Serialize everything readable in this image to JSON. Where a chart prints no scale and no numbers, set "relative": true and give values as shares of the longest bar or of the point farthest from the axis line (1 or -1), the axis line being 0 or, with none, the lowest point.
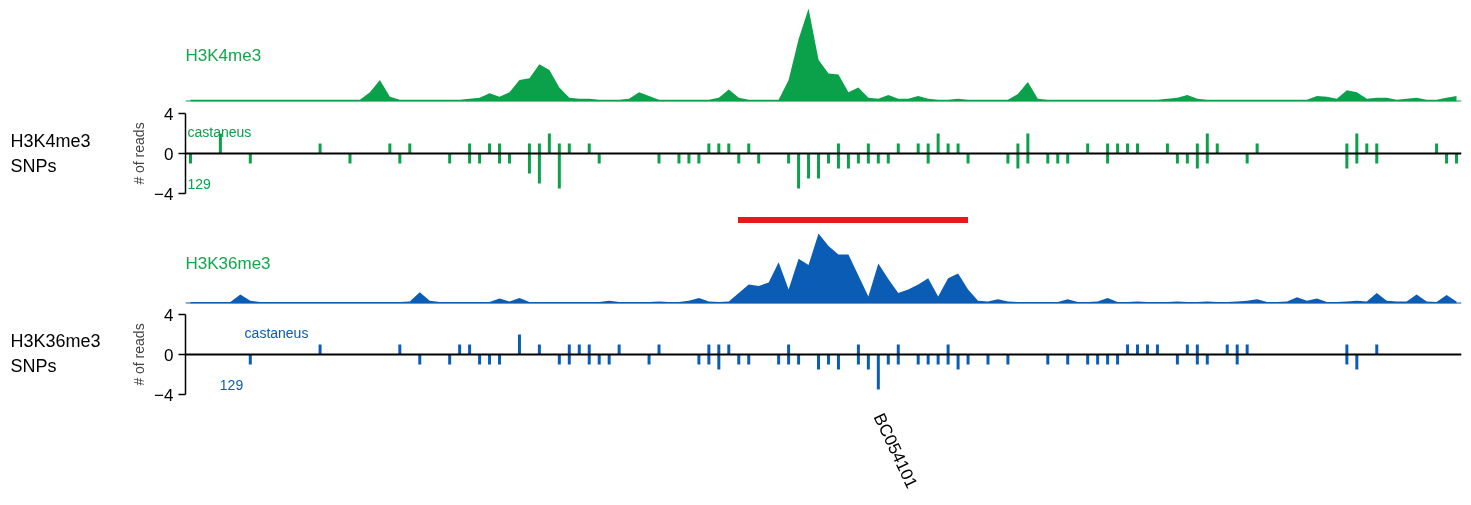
{
  "chart_data": [
    {
      "type": "area",
      "relative": true,
      "title": "H3K4me3",
      "categories": [
        null,
        null,
        null,
        null,
        null,
        null,
        null,
        null,
        null,
        null,
        null,
        null,
        null,
        null,
        null,
        null,
        null,
        null,
        null,
        null,
        null,
        null,
        null,
        null,
        null,
        null,
        null,
        null,
        null,
        null,
        null,
        null,
        null,
        null,
        null,
        null,
        null,
        null,
        null,
        null,
        null,
        null,
        null,
        null,
        null,
        null,
        null,
        null,
        null,
        null,
        null,
        null,
        null,
        null,
        null,
        null,
        null,
        null,
        null,
        null,
        null,
        null,
        null,
        null,
        null,
        null,
        null,
        null,
        null,
        null,
        null,
        null,
        null,
        null,
        null,
        null,
        null,
        null,
        null,
        null,
        null,
        null,
        null,
        null,
        null,
        null,
        null,
        null,
        null,
        null,
        null,
        null,
        null,
        null,
        null,
        null,
        null,
        null,
        null,
        null,
        null,
        null,
        null,
        null,
        null,
        null,
        null,
        null,
        null,
        null,
        null,
        null,
        null,
        null,
        null,
        null,
        null,
        null,
        null,
        null,
        null,
        null,
        null,
        null,
        null,
        null,
        null,
        null
      ],
      "series": [
        {
          "color": "#0aa14a",
          "values": [
            0.02,
            0.02,
            0.02,
            0.02,
            0.02,
            0.02,
            0.02,
            0.02,
            0.02,
            0.02,
            0.02,
            0.02,
            0.02,
            0.02,
            0.02,
            0.02,
            0.02,
            0.02,
            0.1,
            0.23,
            0.05,
            0.02,
            0.02,
            0.02,
            0.02,
            0.02,
            0.02,
            0.02,
            0.03,
            0.04,
            0.09,
            0.05,
            0.1,
            0.23,
            0.25,
            0.4,
            0.34,
            0.15,
            0.04,
            0.03,
            0.03,
            0.02,
            0.02,
            0.02,
            0.03,
            0.1,
            0.06,
            0.02,
            0.02,
            0.02,
            0.02,
            0.02,
            0.02,
            0.04,
            0.13,
            0.04,
            0.02,
            0.02,
            0.02,
            0.02,
            0.23,
            0.67,
            1.0,
            0.45,
            0.3,
            0.29,
            0.1,
            0.15,
            0.04,
            0.03,
            0.07,
            0.03,
            0.03,
            0.06,
            0.03,
            0.02,
            0.02,
            0.03,
            0.02,
            0.02,
            0.02,
            0.02,
            0.02,
            0.08,
            0.21,
            0.03,
            0.02,
            0.02,
            0.02,
            0.02,
            0.02,
            0.02,
            0.02,
            0.02,
            0.02,
            0.02,
            0.02,
            0.02,
            0.03,
            0.04,
            0.07,
            0.03,
            0.02,
            0.02,
            0.02,
            0.02,
            0.02,
            0.02,
            0.02,
            0.02,
            0.02,
            0.02,
            0.02,
            0.06,
            0.05,
            0.03,
            0.12,
            0.1,
            0.03,
            0.04,
            0.04,
            0.02,
            0.03,
            0.04,
            0.02,
            0.02,
            0.04,
            0.06
          ]
        }
      ]
    },
    {
      "type": "bar",
      "ylabel": "# of reads",
      "annotations": [
        "H3K4me3 SNPs"
      ],
      "ylim": [
        -4,
        4
      ],
      "yticks": [
        -4,
        0,
        4
      ],
      "tick_labels": "y",
      "categories": [
        null,
        null,
        null,
        null,
        null,
        null,
        null,
        null,
        null,
        null,
        null,
        null,
        null,
        null,
        null,
        null,
        null,
        null,
        null,
        null,
        null,
        null,
        null,
        null,
        null,
        null,
        null,
        null,
        null,
        null,
        null,
        null,
        null,
        null,
        null,
        null,
        null,
        null,
        null,
        null,
        null,
        null,
        null,
        null,
        null,
        null,
        null,
        null,
        null,
        null,
        null,
        null,
        null,
        null,
        null,
        null,
        null,
        null,
        null,
        null,
        null,
        null,
        null,
        null,
        null,
        null,
        null,
        null,
        null,
        null,
        null,
        null,
        null,
        null,
        null,
        null,
        null,
        null,
        null,
        null,
        null,
        null,
        null,
        null,
        null,
        null,
        null,
        null,
        null,
        null,
        null,
        null,
        null,
        null,
        null,
        null,
        null,
        null,
        null,
        null,
        null,
        null,
        null,
        null,
        null,
        null,
        null,
        null,
        null,
        null,
        null,
        null,
        null,
        null,
        null,
        null,
        null,
        null,
        null,
        null,
        null,
        null,
        null,
        null,
        null,
        null,
        null,
        null
      ],
      "series": [
        {
          "name": "castaneus",
          "color": "#0aa14a",
          "values": [
            null,
            null,
            null,
            2,
            null,
            null,
            null,
            null,
            null,
            null,
            null,
            null,
            null,
            1,
            null,
            null,
            null,
            null,
            null,
            null,
            1,
            null,
            1,
            null,
            null,
            null,
            null,
            null,
            1,
            null,
            1,
            1,
            null,
            null,
            1,
            1,
            2,
            1,
            1,
            null,
            1,
            null,
            null,
            null,
            null,
            null,
            null,
            null,
            null,
            null,
            null,
            null,
            1,
            1,
            1,
            null,
            1,
            null,
            null,
            null,
            null,
            null,
            null,
            null,
            null,
            1,
            null,
            null,
            1,
            null,
            null,
            1,
            null,
            1,
            1,
            2,
            1,
            1,
            null,
            null,
            null,
            null,
            null,
            1,
            2,
            null,
            null,
            null,
            null,
            null,
            1,
            null,
            1,
            1,
            1,
            1,
            null,
            null,
            1,
            null,
            null,
            1,
            2,
            1,
            null,
            null,
            null,
            1,
            null,
            null,
            null,
            null,
            null,
            null,
            null,
            null,
            1,
            2,
            1,
            1,
            null,
            null,
            null,
            null,
            null,
            1,
            null,
            null
          ]
        },
        {
          "name": "129",
          "color": "#0aa14a",
          "values": [
            -1,
            null,
            null,
            null,
            null,
            null,
            -1,
            null,
            null,
            null,
            null,
            null,
            null,
            null,
            null,
            null,
            -1,
            null,
            null,
            null,
            null,
            -1,
            null,
            null,
            null,
            null,
            -1,
            null,
            -1,
            -1,
            null,
            -1,
            -1,
            null,
            -2,
            -3,
            null,
            -3.5,
            null,
            null,
            null,
            -1,
            null,
            null,
            null,
            null,
            null,
            -1,
            null,
            -1,
            -1,
            -1,
            null,
            null,
            null,
            -1,
            null,
            -1,
            null,
            null,
            -1,
            -3.5,
            -2.5,
            -2.5,
            -1,
            -1.5,
            -1.5,
            -1,
            -1,
            -1,
            -1,
            null,
            null,
            null,
            -1,
            null,
            null,
            null,
            -1,
            null,
            null,
            null,
            -1,
            -1.5,
            -1,
            null,
            -1,
            -1,
            -1,
            null,
            null,
            null,
            -1,
            null,
            null,
            null,
            null,
            null,
            null,
            -1,
            -1,
            -1.5,
            -1,
            null,
            null,
            null,
            -1,
            null,
            null,
            null,
            null,
            null,
            null,
            null,
            null,
            null,
            -1.5,
            -1,
            null,
            -1,
            null,
            null,
            null,
            null,
            null,
            null,
            -1,
            -1
          ]
        }
      ]
    },
    {
      "type": "area",
      "relative": true,
      "title": "H3K36me3",
      "categories": [
        null,
        null,
        null,
        null,
        null,
        null,
        null,
        null,
        null,
        null,
        null,
        null,
        null,
        null,
        null,
        null,
        null,
        null,
        null,
        null,
        null,
        null,
        null,
        null,
        null,
        null,
        null,
        null,
        null,
        null,
        null,
        null,
        null,
        null,
        null,
        null,
        null,
        null,
        null,
        null,
        null,
        null,
        null,
        null,
        null,
        null,
        null,
        null,
        null,
        null,
        null,
        null,
        null,
        null,
        null,
        null,
        null,
        null,
        null,
        null,
        null,
        null,
        null,
        null,
        null,
        null,
        null,
        null,
        null,
        null,
        null,
        null,
        null,
        null,
        null,
        null,
        null,
        null,
        null,
        null,
        null,
        null,
        null,
        null,
        null,
        null,
        null,
        null,
        null,
        null,
        null,
        null,
        null,
        null,
        null,
        null,
        null,
        null,
        null,
        null,
        null,
        null,
        null,
        null,
        null,
        null,
        null,
        null,
        null,
        null,
        null,
        null,
        null,
        null,
        null,
        null,
        null,
        null,
        null,
        null,
        null,
        null,
        null,
        null,
        null,
        null,
        null,
        null
      ],
      "series": [
        {
          "color": "#0a5cb5",
          "values": [
            0.02,
            0.02,
            0.02,
            0.02,
            0.02,
            0.13,
            0.04,
            0.02,
            0.02,
            0.02,
            0.02,
            0.02,
            0.02,
            0.02,
            0.02,
            0.02,
            0.02,
            0.02,
            0.02,
            0.02,
            0.02,
            0.02,
            0.03,
            0.16,
            0.04,
            0.02,
            0.02,
            0.02,
            0.02,
            0.02,
            0.02,
            0.07,
            0.03,
            0.08,
            0.02,
            0.02,
            0.02,
            0.02,
            0.02,
            0.02,
            0.02,
            0.02,
            0.04,
            0.02,
            0.02,
            0.02,
            0.02,
            0.03,
            0.02,
            0.02,
            0.04,
            0.08,
            0.03,
            0.02,
            0.03,
            0.15,
            0.27,
            0.25,
            0.3,
            0.59,
            0.2,
            0.64,
            0.55,
            1.0,
            0.82,
            0.7,
            0.7,
            0.4,
            0.1,
            0.57,
            0.35,
            0.15,
            0.2,
            0.27,
            0.36,
            0.1,
            0.36,
            0.43,
            0.2,
            0.04,
            0.03,
            0.06,
            0.03,
            0.02,
            0.02,
            0.02,
            0.02,
            0.02,
            0.06,
            0.02,
            0.02,
            0.03,
            0.08,
            0.02,
            0.02,
            0.03,
            0.02,
            0.02,
            0.02,
            0.03,
            0.02,
            0.02,
            0.03,
            0.02,
            0.02,
            0.03,
            0.04,
            0.06,
            0.02,
            0.02,
            0.03,
            0.09,
            0.04,
            0.07,
            0.02,
            0.02,
            0.03,
            0.04,
            0.03,
            0.15,
            0.04,
            0.03,
            0.03,
            0.13,
            0.03,
            0.02,
            0.12,
            0.03
          ]
        }
      ]
    },
    {
      "type": "bar",
      "ylabel": "# of reads",
      "annotations": [
        "H3K36me3 SNPs",
        "BC054101"
      ],
      "ylim": [
        -4,
        4
      ],
      "yticks": [
        -4,
        0,
        4
      ],
      "tick_labels": "y",
      "categories": [
        null,
        null,
        null,
        null,
        null,
        null,
        null,
        null,
        null,
        null,
        null,
        null,
        null,
        null,
        null,
        null,
        null,
        null,
        null,
        null,
        null,
        null,
        null,
        null,
        null,
        null,
        null,
        null,
        null,
        null,
        null,
        null,
        null,
        null,
        null,
        null,
        null,
        null,
        null,
        null,
        null,
        null,
        null,
        null,
        null,
        null,
        null,
        null,
        null,
        null,
        null,
        null,
        null,
        null,
        null,
        null,
        null,
        null,
        null,
        null,
        null,
        null,
        null,
        null,
        null,
        null,
        null,
        null,
        null,
        null,
        null,
        null,
        null,
        null,
        null,
        null,
        null,
        null,
        null,
        null,
        null,
        null,
        null,
        null,
        null,
        null,
        null,
        null,
        null,
        null,
        null,
        null,
        null,
        null,
        null,
        null,
        null,
        null,
        null,
        null,
        null,
        null,
        null,
        null,
        null,
        null,
        null,
        null,
        null,
        null,
        null,
        null,
        null,
        null,
        null,
        null,
        null,
        null,
        null,
        null,
        null,
        null,
        null,
        null,
        null,
        null,
        null,
        null
      ],
      "series": [
        {
          "name": "castaneus",
          "color": "#0a5cb5",
          "values": [
            null,
            null,
            null,
            null,
            null,
            null,
            null,
            null,
            null,
            null,
            null,
            null,
            null,
            1,
            null,
            null,
            null,
            null,
            null,
            null,
            null,
            1,
            null,
            null,
            null,
            null,
            null,
            1,
            1,
            null,
            null,
            null,
            null,
            2,
            null,
            1,
            null,
            null,
            1,
            1,
            1,
            null,
            null,
            1,
            null,
            null,
            null,
            1,
            null,
            null,
            null,
            null,
            1,
            1,
            1,
            null,
            null,
            null,
            null,
            null,
            1,
            null,
            null,
            null,
            null,
            null,
            null,
            1,
            null,
            null,
            null,
            1,
            null,
            null,
            null,
            null,
            1,
            null,
            null,
            null,
            null,
            null,
            null,
            null,
            null,
            null,
            null,
            null,
            null,
            null,
            null,
            null,
            null,
            null,
            1,
            1,
            1,
            1,
            null,
            null,
            1,
            1,
            null,
            null,
            1,
            1,
            1,
            null,
            null,
            null,
            null,
            null,
            null,
            null,
            null,
            null,
            1,
            null,
            null,
            1,
            null,
            null,
            null,
            null,
            null,
            null,
            null,
            null
          ]
        },
        {
          "name": "129",
          "color": "#0a5cb5",
          "values": [
            null,
            null,
            null,
            null,
            null,
            null,
            -1,
            null,
            null,
            null,
            null,
            null,
            null,
            null,
            null,
            null,
            null,
            null,
            null,
            null,
            null,
            null,
            null,
            -1,
            null,
            null,
            -1,
            null,
            null,
            -1,
            -1,
            -1,
            null,
            null,
            null,
            null,
            null,
            -1,
            -1,
            null,
            -1,
            -1,
            -1,
            null,
            null,
            null,
            -1,
            null,
            null,
            null,
            null,
            -1,
            -1,
            -1.5,
            null,
            -1,
            -1,
            null,
            null,
            -1,
            -1,
            -1,
            null,
            -1.5,
            -1,
            -1.5,
            null,
            -1,
            -1.5,
            -3.5,
            -1,
            -1,
            null,
            -1,
            -1,
            -1,
            -1,
            -1.5,
            -1,
            null,
            -1,
            null,
            -1,
            null,
            null,
            null,
            -1,
            null,
            -1,
            null,
            -1,
            -1,
            -1,
            -1,
            null,
            null,
            null,
            null,
            null,
            -1,
            null,
            -1,
            -1,
            null,
            null,
            -1,
            null,
            null,
            null,
            null,
            null,
            null,
            null,
            null,
            null,
            null,
            -1,
            -1.5,
            null,
            null,
            null,
            null,
            null,
            null,
            null,
            null,
            null,
            null
          ]
        }
      ]
    }
  ]
}
